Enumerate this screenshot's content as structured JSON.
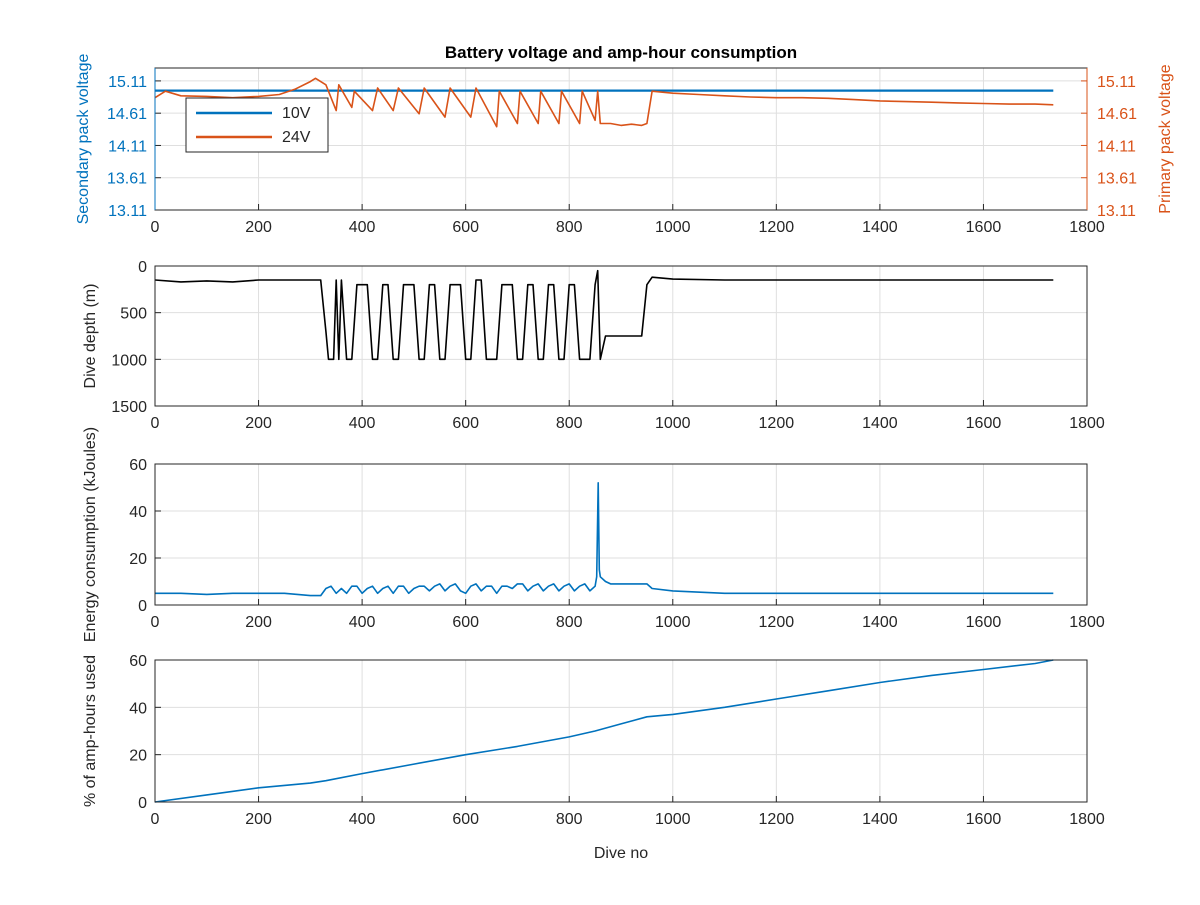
{
  "chart_data": [
    {
      "type": "line",
      "title": "Battery voltage and amp-hour consumption",
      "xlabel": "",
      "xlim": [
        0,
        1800
      ],
      "xticks": [
        0,
        200,
        400,
        600,
        800,
        1000,
        1200,
        1400,
        1600,
        1800
      ],
      "ylabel_left": "Secondary pack voltage",
      "ylabel_right": "Primary pack voltage",
      "ylim": [
        13.11,
        15.31
      ],
      "yticks": [
        "13.11",
        "13.61",
        "14.11",
        "14.61",
        "15.11"
      ],
      "legend_position": "top-left",
      "grid": true,
      "series": [
        {
          "name": "10V",
          "color": "#0072BD",
          "axis": "left",
          "x": [
            0,
            1735
          ],
          "y": [
            14.96,
            14.96
          ]
        },
        {
          "name": "24V",
          "color": "#D95319",
          "axis": "right",
          "x": [
            0,
            20,
            50,
            100,
            150,
            200,
            240,
            270,
            300,
            310,
            330,
            350,
            355,
            380,
            385,
            420,
            430,
            460,
            470,
            510,
            520,
            560,
            570,
            610,
            620,
            660,
            665,
            700,
            705,
            740,
            745,
            780,
            785,
            820,
            825,
            850,
            855,
            860,
            880,
            900,
            920,
            940,
            950,
            960,
            1000,
            1050,
            1100,
            1150,
            1200,
            1250,
            1300,
            1350,
            1400,
            1450,
            1500,
            1550,
            1600,
            1650,
            1700,
            1735
          ],
          "y": [
            14.85,
            14.95,
            14.88,
            14.87,
            14.85,
            14.87,
            14.9,
            14.98,
            15.1,
            15.15,
            15.05,
            14.65,
            15.05,
            14.7,
            14.95,
            14.65,
            15.0,
            14.65,
            15.0,
            14.6,
            15.0,
            14.55,
            15.0,
            14.55,
            15.0,
            14.4,
            14.95,
            14.45,
            14.95,
            14.45,
            14.95,
            14.45,
            14.95,
            14.45,
            14.95,
            14.5,
            14.95,
            14.45,
            14.45,
            14.42,
            14.44,
            14.42,
            14.45,
            14.95,
            14.92,
            14.9,
            14.88,
            14.86,
            14.85,
            14.85,
            14.84,
            14.82,
            14.8,
            14.79,
            14.78,
            14.77,
            14.76,
            14.75,
            14.75,
            14.74
          ]
        }
      ]
    },
    {
      "type": "line",
      "xlabel": "",
      "ylabel": "Dive depth (m)",
      "xlim": [
        0,
        1800
      ],
      "ylim": [
        0,
        1500
      ],
      "y_reversed": true,
      "xticks": [
        0,
        200,
        400,
        600,
        800,
        1000,
        1200,
        1400,
        1600,
        1800
      ],
      "yticks": [
        0,
        500,
        1000,
        1500
      ],
      "grid": true,
      "series": [
        {
          "color": "#000000",
          "x": [
            0,
            50,
            100,
            150,
            200,
            250,
            300,
            320,
            330,
            335,
            345,
            350,
            355,
            360,
            370,
            380,
            390,
            400,
            410,
            420,
            430,
            440,
            450,
            460,
            470,
            480,
            490,
            500,
            510,
            520,
            530,
            540,
            550,
            560,
            570,
            580,
            590,
            600,
            610,
            620,
            630,
            640,
            650,
            660,
            670,
            680,
            690,
            700,
            710,
            720,
            730,
            740,
            750,
            760,
            770,
            780,
            790,
            800,
            810,
            820,
            830,
            840,
            850,
            855,
            860,
            870,
            880,
            900,
            920,
            940,
            950,
            960,
            1000,
            1100,
            1200,
            1300,
            1400,
            1500,
            1600,
            1700,
            1735
          ],
          "y": [
            150,
            170,
            160,
            170,
            150,
            150,
            150,
            150,
            700,
            1000,
            1000,
            150,
            1000,
            150,
            1000,
            1000,
            200,
            200,
            200,
            1000,
            1000,
            200,
            200,
            1000,
            1000,
            200,
            200,
            200,
            1000,
            1000,
            200,
            200,
            1000,
            1000,
            200,
            200,
            200,
            1000,
            1000,
            150,
            150,
            1000,
            1000,
            1000,
            200,
            200,
            200,
            1000,
            1000,
            200,
            200,
            1000,
            1000,
            200,
            200,
            1000,
            1000,
            200,
            200,
            1000,
            1000,
            1000,
            200,
            50,
            1000,
            750,
            750,
            750,
            750,
            750,
            200,
            120,
            140,
            150,
            150,
            150,
            150,
            150,
            150,
            150,
            150
          ]
        }
      ]
    },
    {
      "type": "line",
      "xlabel": "",
      "ylabel": "Energy consumption (kJoules)",
      "xlim": [
        0,
        1800
      ],
      "ylim": [
        0,
        60
      ],
      "xticks": [
        0,
        200,
        400,
        600,
        800,
        1000,
        1200,
        1400,
        1600,
        1800
      ],
      "yticks": [
        0,
        20,
        40,
        60
      ],
      "grid": true,
      "series": [
        {
          "color": "#0072BD",
          "x": [
            0,
            50,
            100,
            150,
            200,
            250,
            300,
            320,
            330,
            340,
            350,
            360,
            370,
            380,
            390,
            400,
            410,
            420,
            430,
            440,
            450,
            460,
            470,
            480,
            490,
            500,
            510,
            520,
            530,
            540,
            550,
            560,
            570,
            580,
            590,
            600,
            610,
            620,
            630,
            640,
            650,
            660,
            670,
            680,
            690,
            700,
            710,
            720,
            730,
            740,
            750,
            760,
            770,
            780,
            790,
            800,
            810,
            820,
            830,
            840,
            850,
            853,
            856,
            858,
            860,
            870,
            880,
            900,
            920,
            940,
            950,
            960,
            1000,
            1100,
            1200,
            1300,
            1400,
            1500,
            1600,
            1700,
            1735
          ],
          "y": [
            5,
            5,
            4.5,
            5,
            5,
            5,
            4,
            4,
            7,
            8,
            5,
            7,
            5,
            8,
            8,
            5,
            7,
            8,
            5,
            7,
            8,
            5,
            8,
            8,
            5,
            7,
            8,
            8,
            6,
            8,
            9,
            6,
            8,
            9,
            6,
            5,
            8,
            9,
            6,
            8,
            8,
            5,
            8,
            8,
            7,
            9,
            9,
            6,
            8,
            9,
            6,
            8,
            9,
            6,
            8,
            9,
            6,
            8,
            9,
            6,
            8,
            12,
            52,
            15,
            12,
            10,
            9,
            9,
            9,
            9,
            9,
            7,
            6,
            5,
            5,
            5,
            5,
            5,
            5,
            5,
            5
          ]
        }
      ]
    },
    {
      "type": "line",
      "xlabel": "Dive no",
      "ylabel": "% of amp-hours used",
      "xlim": [
        0,
        1800
      ],
      "ylim": [
        0,
        60
      ],
      "xticks": [
        0,
        200,
        400,
        600,
        800,
        1000,
        1200,
        1400,
        1600,
        1800
      ],
      "yticks": [
        0,
        20,
        40,
        60
      ],
      "grid": true,
      "series": [
        {
          "color": "#0072BD",
          "x": [
            0,
            100,
            200,
            300,
            330,
            400,
            500,
            600,
            700,
            800,
            850,
            900,
            950,
            1000,
            1100,
            1200,
            1300,
            1400,
            1500,
            1600,
            1700,
            1735
          ],
          "y": [
            0,
            3,
            6,
            8,
            9,
            12,
            16,
            20,
            23.5,
            27.5,
            30,
            33,
            36,
            37,
            40,
            43.5,
            47,
            50.5,
            53.5,
            56,
            58.5,
            60
          ]
        }
      ]
    }
  ]
}
